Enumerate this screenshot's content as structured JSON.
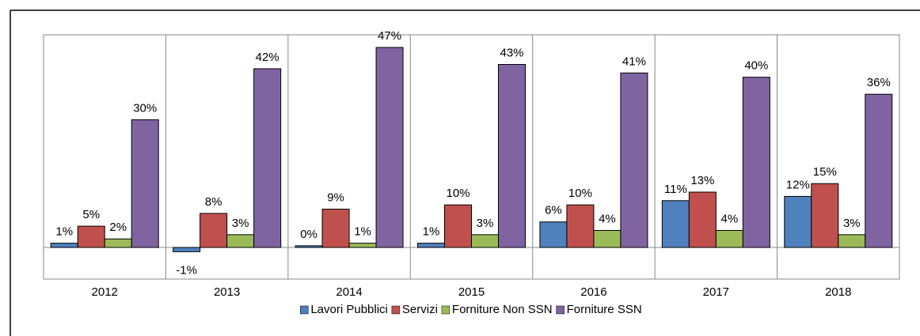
{
  "chart_data": {
    "type": "bar",
    "categories": [
      "2012",
      "2013",
      "2014",
      "2015",
      "2016",
      "2017",
      "2018"
    ],
    "series": [
      {
        "name": "Lavori Pubblici",
        "color": "#4f81bd",
        "values": [
          1,
          -1,
          0.4,
          1,
          6,
          11,
          12
        ],
        "value_labels": [
          "1%",
          "-1%",
          "0%",
          "1%",
          "6%",
          "11%",
          "12%"
        ]
      },
      {
        "name": "Servizi",
        "color": "#c0504d",
        "values": [
          5,
          8,
          9,
          10,
          10,
          13,
          15
        ],
        "value_labels": [
          "5%",
          "8%",
          "9%",
          "10%",
          "10%",
          "13%",
          "15%"
        ]
      },
      {
        "name": "Forniture Non SSN",
        "color": "#9bbb59",
        "values": [
          2,
          3,
          1,
          3,
          4,
          4,
          3
        ],
        "value_labels": [
          "2%",
          "3%",
          "1%",
          "3%",
          "4%",
          "4%",
          "3%"
        ]
      },
      {
        "name": "Forniture SSN",
        "color": "#8064a2",
        "values": [
          30,
          42,
          47,
          43,
          41,
          40,
          36
        ],
        "value_labels": [
          "30%",
          "42%",
          "47%",
          "43%",
          "41%",
          "40%",
          "36%"
        ]
      }
    ],
    "legend": "bottom"
  }
}
